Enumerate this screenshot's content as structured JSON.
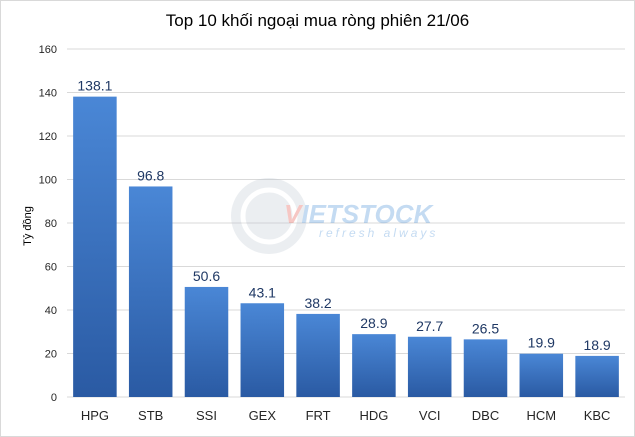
{
  "chart_data": {
    "type": "bar",
    "title": "Top 10 khối ngoại mua ròng phiên 21/06",
    "xlabel": "",
    "ylabel": "Tỷ đồng",
    "categories": [
      "HPG",
      "STB",
      "SSI",
      "GEX",
      "FRT",
      "HDG",
      "VCI",
      "DBC",
      "HCM",
      "KBC"
    ],
    "values": [
      138.1,
      96.8,
      50.6,
      43.1,
      38.2,
      28.9,
      27.7,
      26.5,
      19.9,
      18.9
    ],
    "value_labels": [
      "138.1",
      "96.8",
      "50.6",
      "43.1",
      "38.2",
      "28.9",
      "27.7",
      "26.5",
      "19.9",
      "18.9"
    ],
    "ylim": [
      0,
      160
    ],
    "yticks": [
      0,
      20,
      40,
      60,
      80,
      100,
      120,
      140,
      160
    ],
    "grid": true,
    "legend": "none",
    "bar_color_top": "#4a87d6",
    "bar_color_bottom": "#2a5aa3"
  },
  "watermark": {
    "brand_prefix": "V",
    "brand_main": "IETSTOCK",
    "tagline": "refresh always",
    "accent_color": "#e23b2e",
    "text_color": "#2f7fd1"
  }
}
